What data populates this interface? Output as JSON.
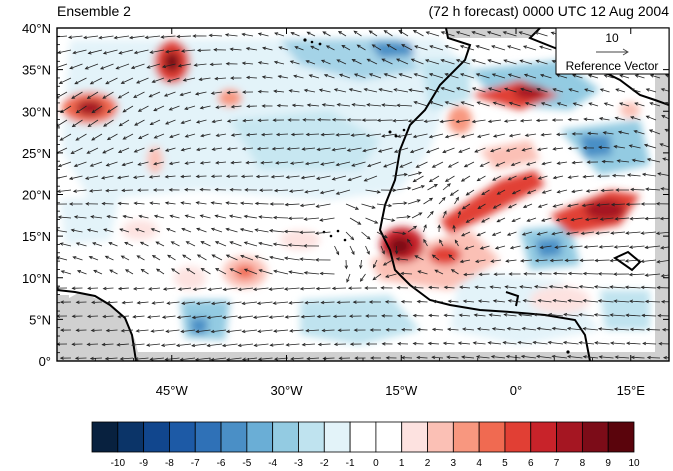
{
  "header": {
    "left_title": "Ensemble 2",
    "right_title": "(72 h forecast) 0000 UTC 12 Aug 2004"
  },
  "map": {
    "lat_ticks": [
      "40°N",
      "35°N",
      "30°N",
      "25°N",
      "20°N",
      "15°N",
      "10°N",
      "5°N",
      "0°"
    ],
    "lon_ticks": [
      "45°W",
      "30°W",
      "15°W",
      "0°",
      "15°E"
    ],
    "lon_range": [
      -60,
      20
    ],
    "lat_range": [
      0,
      40
    ],
    "land_fill": "#d0d0d0"
  },
  "reference_vector": {
    "value": "10",
    "label": "Reference Vector"
  },
  "colorbar": {
    "labels": [
      "-10",
      "-9",
      "-8",
      "-7",
      "-6",
      "-5",
      "-4",
      "-3",
      "-2",
      "-1",
      "0",
      "1",
      "2",
      "3",
      "4",
      "5",
      "6",
      "7",
      "8",
      "9",
      "10"
    ],
    "colors": [
      "#08213f",
      "#0b3468",
      "#11468d",
      "#1d5aa6",
      "#2f71b7",
      "#4a8fc6",
      "#6aaed6",
      "#93cbe2",
      "#bfe3ef",
      "#e3f3f9",
      "#ffffff",
      "#ffffff",
      "#fde2e0",
      "#fbc0b5",
      "#f8977f",
      "#f06a51",
      "#e13f34",
      "#c8232a",
      "#a51622",
      "#7c0c18",
      "#5a040c"
    ]
  }
}
